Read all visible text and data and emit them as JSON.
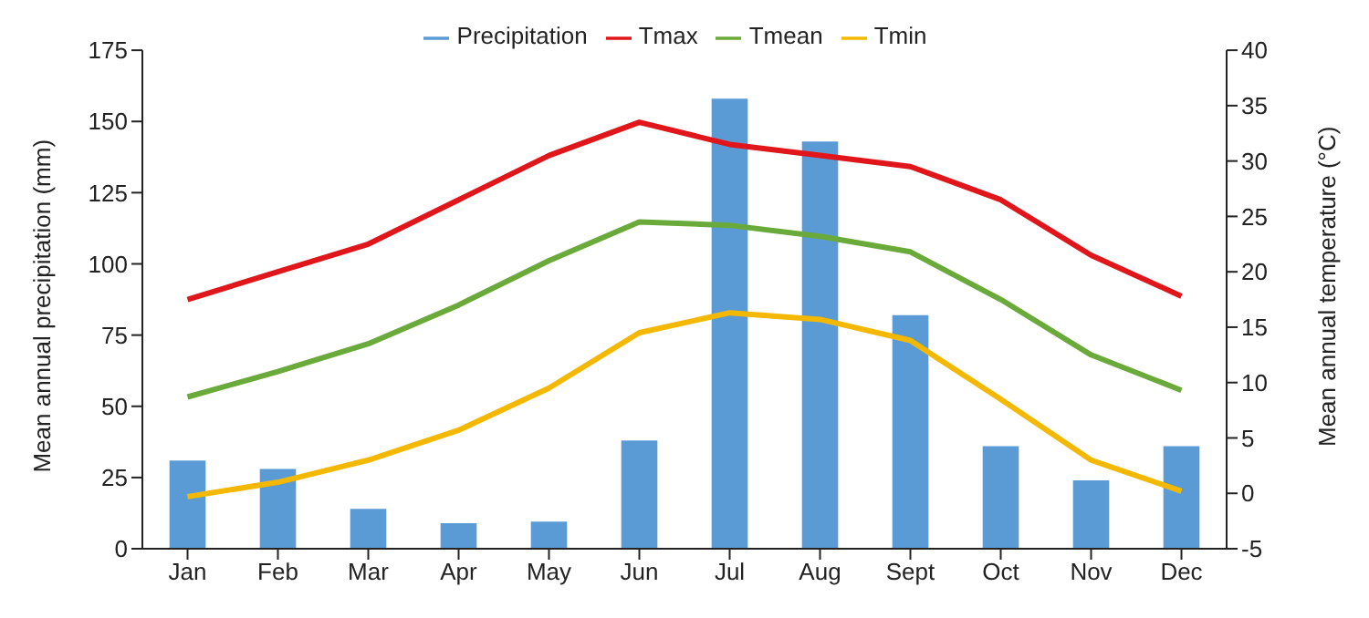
{
  "chart_data": {
    "type": "bar",
    "ylabel": "Mean annual precipitation (mm)",
    "y2label": "Mean annual temperature (°C)",
    "categories": [
      "Jan",
      "Feb",
      "Mar",
      "Apr",
      "May",
      "Jun",
      "Jul",
      "Aug",
      "Sept",
      "Oct",
      "Nov",
      "Dec"
    ],
    "series": [
      {
        "name": "Precipitation",
        "color": "#5b9bd5",
        "values": [
          31,
          28,
          14,
          9,
          9.5,
          38,
          158,
          143,
          82,
          36,
          24,
          36
        ]
      },
      {
        "name": "Tmax",
        "type": "line",
        "axis": "y2",
        "color": "#e0161b",
        "values": [
          17.5,
          20,
          22.5,
          26.5,
          30.5,
          33.5,
          31.5,
          30.5,
          29.5,
          26.5,
          21.5,
          17.8
        ]
      },
      {
        "name": "Tmean",
        "type": "line",
        "axis": "y2",
        "color": "#6aaa3a",
        "values": [
          8.7,
          11,
          13.5,
          17,
          21,
          24.5,
          24.2,
          23.2,
          21.8,
          17.5,
          12.5,
          9.3
        ]
      },
      {
        "name": "Tmin",
        "type": "line",
        "axis": "y2",
        "color": "#f5b800",
        "values": [
          -0.3,
          1,
          3,
          5.7,
          9.5,
          14.5,
          16.3,
          15.7,
          13.8,
          8.5,
          3,
          0.2
        ]
      }
    ],
    "ylim": [
      0,
      175
    ],
    "yticks": [
      0,
      25,
      50,
      75,
      100,
      125,
      150,
      175
    ],
    "y2lim": [
      -5,
      40
    ],
    "y2ticks": [
      -5,
      0,
      5,
      10,
      15,
      20,
      25,
      30,
      35,
      40
    ],
    "legend": "top",
    "grid": false,
    "marker": "none",
    "line_style": "solid"
  }
}
